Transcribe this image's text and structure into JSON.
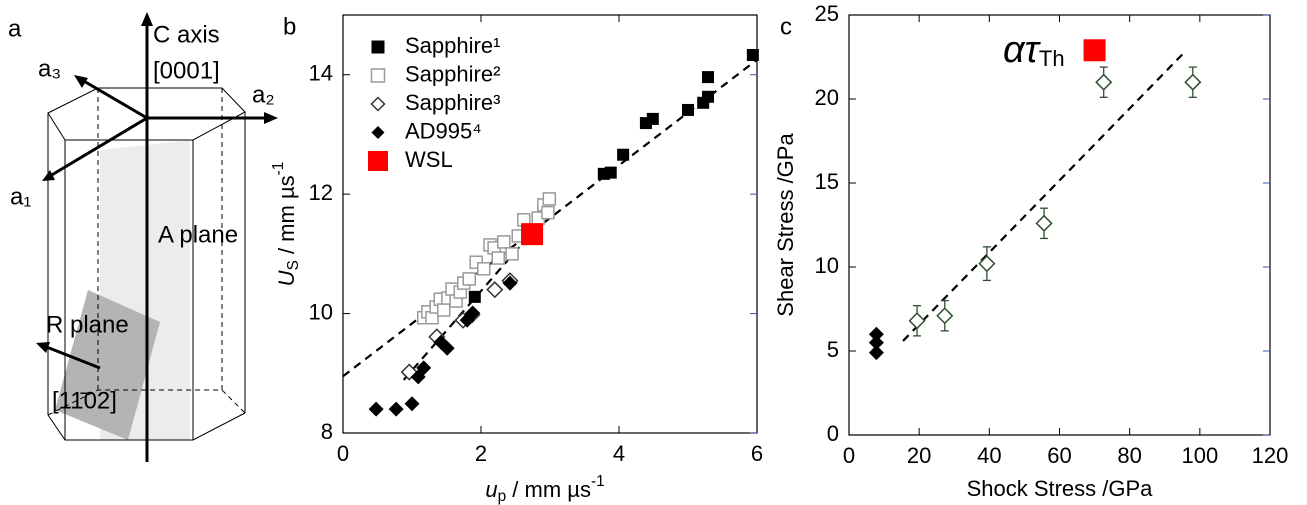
{
  "diagram_a": {
    "panel": "a",
    "labels": {
      "c_axis": "C axis",
      "direction_c": "[0001]",
      "a3": "a₃",
      "a2": "a₂",
      "a1": "a₁",
      "a_plane": "A plane",
      "r_plane": "R plane",
      "direction_r": "[11̄02]"
    }
  },
  "chart_data": [
    {
      "type": "scatter",
      "panel": "b",
      "xlabel": {
        "main": "u",
        "sub": "p",
        "unit": " / mm µs",
        "sup": "-1"
      },
      "ylabel": {
        "main": "U",
        "sub": "S",
        "unit": " / mm µs",
        "sup": "-1"
      },
      "xlim": [
        0,
        6
      ],
      "ylim": [
        8,
        15
      ],
      "xticks": [
        0,
        2,
        4,
        6
      ],
      "yticks": [
        8,
        10,
        12,
        14
      ],
      "legend": "upper left",
      "series": [
        {
          "name": "Sapphire¹",
          "marker": "square",
          "filled": true,
          "color": "#000000",
          "size": 12,
          "x": [
            1.91,
            3.78,
            3.88,
            4.06,
            4.39,
            4.49,
            5.0,
            5.22,
            5.29,
            5.29,
            5.94
          ],
          "values": [
            10.28,
            12.34,
            12.36,
            12.66,
            13.19,
            13.26,
            13.41,
            13.53,
            13.63,
            13.96,
            14.33
          ]
        },
        {
          "name": "Sapphire²",
          "marker": "square",
          "filled": false,
          "color": "#9a9a9a",
          "size": 12,
          "x": [
            1.17,
            1.23,
            1.29,
            1.35,
            1.41,
            1.46,
            1.52,
            1.58,
            1.64,
            1.7,
            1.75,
            1.83,
            1.93,
            2.04,
            2.13,
            2.19,
            2.25,
            2.33,
            2.45,
            2.54,
            2.62,
            2.83,
            2.91,
            2.99,
            2.97
          ],
          "values": [
            9.93,
            10.03,
            9.93,
            10.11,
            10.24,
            10.06,
            10.26,
            10.41,
            10.21,
            10.36,
            10.51,
            10.58,
            10.86,
            10.75,
            11.15,
            11.1,
            10.93,
            11.2,
            11.0,
            11.3,
            11.57,
            11.6,
            11.82,
            11.92,
            11.69
          ]
        },
        {
          "name": "Sapphire³",
          "marker": "diamond",
          "filled": false,
          "color": "#333333",
          "size": 15,
          "x": [
            0.96,
            1.36,
            1.74,
            1.87,
            2.2,
            2.42
          ],
          "values": [
            9.02,
            9.61,
            9.89,
            9.98,
            10.4,
            10.55
          ]
        },
        {
          "name": "AD995⁴",
          "marker": "diamond",
          "filled": true,
          "color": "#000000",
          "size": 15,
          "x": [
            0.48,
            0.77,
            1.0,
            1.09,
            1.17,
            1.42,
            1.51,
            1.8,
            1.88,
            2.42
          ],
          "values": [
            8.4,
            8.4,
            8.49,
            8.94,
            9.09,
            9.52,
            9.42,
            9.89,
            10.01,
            10.51
          ]
        },
        {
          "name": "WSL",
          "marker": "square",
          "filled": true,
          "color": "#ff0000",
          "label_color": "#ff0000",
          "size": 22,
          "x": [
            2.74
          ],
          "values": [
            11.33
          ]
        }
      ],
      "fit_lines": [
        {
          "x": [
            0,
            6
          ],
          "y": [
            8.95,
            14.25
          ]
        },
        {
          "x": [
            0.88,
            2.71
          ],
          "y": [
            8.89,
            11.32
          ]
        }
      ]
    },
    {
      "type": "scatter",
      "panel": "c",
      "xlabel": "Shock Stress /GPa",
      "ylabel": "Shear Stress /GPa",
      "xlim": [
        0,
        120
      ],
      "ylim": [
        0,
        25
      ],
      "xticks": [
        0,
        20,
        40,
        60,
        80,
        100,
        120
      ],
      "yticks": [
        0,
        5,
        10,
        15,
        20,
        25
      ],
      "series": [
        {
          "marker": "diamond",
          "filled": true,
          "color": "#000000",
          "size": 15,
          "x": [
            7.8,
            7.8,
            7.8
          ],
          "values": [
            6.0,
            5.5,
            4.9
          ]
        },
        {
          "marker": "diamond",
          "filled": false,
          "color": "#2f4f2f",
          "size": 15,
          "x": [
            19.4,
            27.3,
            39.3,
            55.6,
            72.6,
            98.0
          ],
          "values": [
            6.8,
            7.1,
            10.2,
            12.6,
            21.0,
            21.0
          ],
          "errors": [
            0.9,
            0.9,
            1.0,
            0.9,
            0.9,
            0.9
          ]
        },
        {
          "marker": "square",
          "filled": true,
          "color": "#ff0000",
          "size": 22,
          "x": [
            70
          ],
          "values": [
            22.9
          ]
        }
      ],
      "fit_lines": [
        {
          "x": [
            15.4,
            95.7
          ],
          "y": [
            5.6,
            22.8
          ]
        }
      ],
      "annotation": {
        "main": "ατ",
        "sub": "Th"
      }
    }
  ]
}
